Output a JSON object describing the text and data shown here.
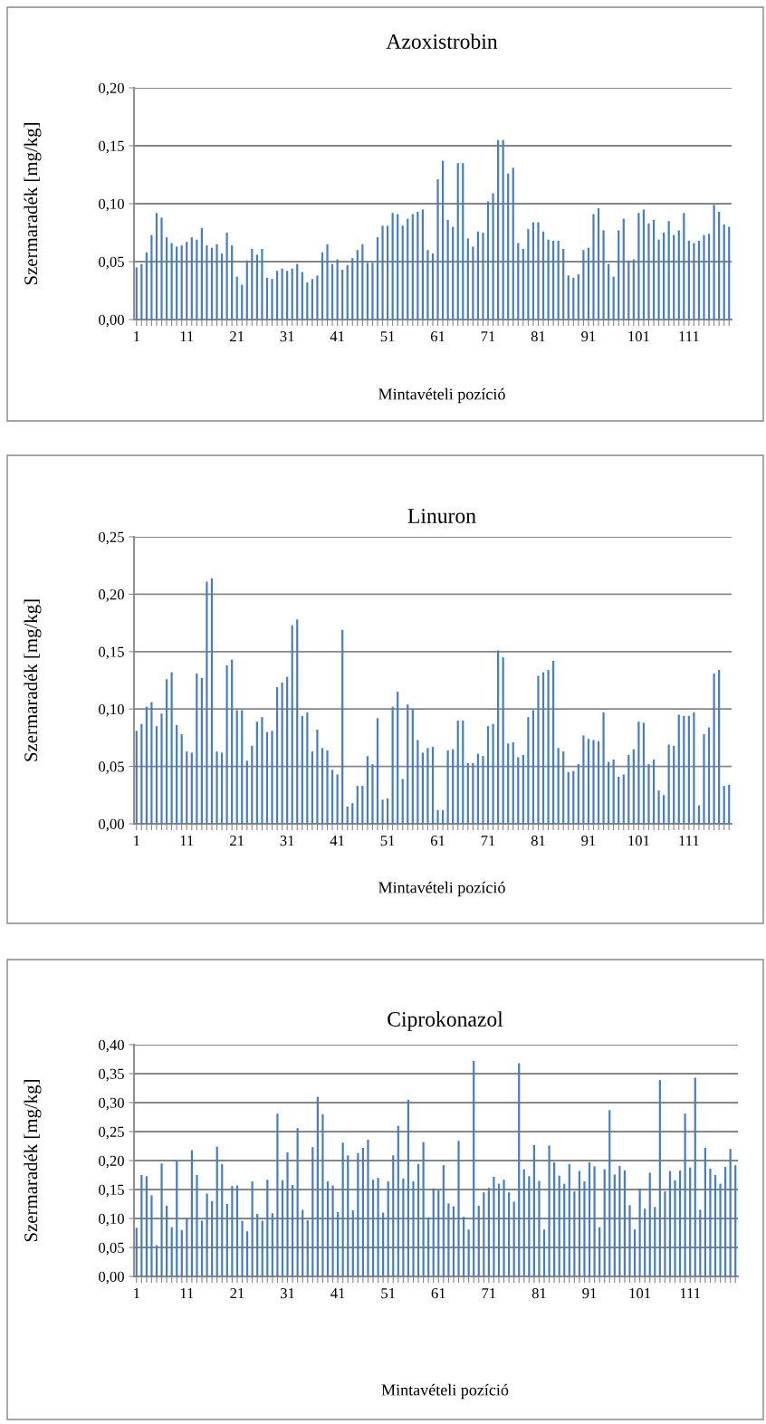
{
  "chart_data": [
    {
      "type": "bar",
      "title": "Azoxistrobin",
      "xlabel": "Mintavételi pozíció",
      "ylabel": "Szermaradék [mg/kg]",
      "color": "#4a7ebb",
      "grid": "y",
      "categories": [
        "1",
        null,
        null,
        null,
        null,
        null,
        null,
        null,
        null,
        null,
        "11",
        null,
        null,
        null,
        null,
        null,
        null,
        null,
        null,
        null,
        "21",
        null,
        null,
        null,
        null,
        null,
        null,
        null,
        null,
        null,
        "31",
        null,
        null,
        null,
        null,
        null,
        null,
        null,
        null,
        null,
        "41",
        null,
        null,
        null,
        null,
        null,
        null,
        null,
        null,
        null,
        "51",
        null,
        null,
        null,
        null,
        null,
        null,
        null,
        null,
        null,
        "61",
        null,
        null,
        null,
        null,
        null,
        null,
        null,
        null,
        null,
        "71",
        null,
        null,
        null,
        null,
        null,
        null,
        null,
        null,
        null,
        "81",
        null,
        null,
        null,
        null,
        null,
        null,
        null,
        null,
        null,
        "91",
        null,
        null,
        null,
        null,
        null,
        null,
        null,
        null,
        null,
        "101",
        null,
        null,
        null,
        null,
        null,
        null,
        null,
        null,
        null,
        "111",
        null,
        null,
        null,
        null,
        null,
        null,
        null,
        null
      ],
      "values": [
        0.045,
        0.048,
        0.058,
        0.073,
        0.092,
        0.088,
        0.071,
        0.066,
        0.063,
        0.064,
        0.067,
        0.071,
        0.069,
        0.079,
        0.064,
        0.062,
        0.065,
        0.057,
        0.075,
        0.064,
        0.037,
        0.03,
        0.051,
        0.061,
        0.056,
        0.061,
        0.036,
        0.035,
        0.042,
        0.044,
        0.042,
        0.044,
        0.048,
        0.041,
        0.032,
        0.035,
        0.038,
        0.058,
        0.065,
        0.048,
        0.052,
        0.043,
        0.047,
        0.053,
        0.06,
        0.065,
        0.049,
        0.049,
        0.071,
        0.081,
        0.081,
        0.092,
        0.091,
        0.081,
        0.087,
        0.091,
        0.093,
        0.095,
        0.06,
        0.057,
        0.121,
        0.137,
        0.086,
        0.08,
        0.135,
        0.135,
        0.07,
        0.063,
        0.076,
        0.075,
        0.102,
        0.109,
        0.155,
        0.155,
        0.126,
        0.131,
        0.066,
        0.061,
        0.078,
        0.084,
        0.084,
        0.076,
        0.069,
        0.068,
        0.068,
        0.061,
        0.038,
        0.036,
        0.039,
        0.06,
        0.062,
        0.091,
        0.096,
        0.077,
        0.048,
        0.037,
        0.077,
        0.087,
        0.051,
        0.052,
        0.092,
        0.095,
        0.083,
        0.086,
        0.069,
        0.075,
        0.085,
        0.073,
        0.077,
        0.092,
        0.068,
        0.066,
        0.068,
        0.073,
        0.074,
        0.099,
        0.093,
        0.082,
        0.08
      ],
      "ylim": [
        0,
        0.2
      ],
      "yticks": [
        {
          "value": 0,
          "label": "0,00"
        },
        {
          "value": 0.05,
          "label": "0,05"
        },
        {
          "value": 0.1,
          "label": "0,10"
        },
        {
          "value": 0.15,
          "label": "0,15"
        },
        {
          "value": 0.2,
          "label": "0,20"
        }
      ]
    },
    {
      "type": "bar",
      "title": "Linuron",
      "xlabel": "Mintavételi pozíció",
      "ylabel": "Szermaradék [mg/kg]",
      "color": "#4a7ebb",
      "grid": "y",
      "categories": [
        "1",
        null,
        null,
        null,
        null,
        null,
        null,
        null,
        null,
        null,
        "11",
        null,
        null,
        null,
        null,
        null,
        null,
        null,
        null,
        null,
        "21",
        null,
        null,
        null,
        null,
        null,
        null,
        null,
        null,
        null,
        "31",
        null,
        null,
        null,
        null,
        null,
        null,
        null,
        null,
        null,
        "41",
        null,
        null,
        null,
        null,
        null,
        null,
        null,
        null,
        null,
        "51",
        null,
        null,
        null,
        null,
        null,
        null,
        null,
        null,
        null,
        "61",
        null,
        null,
        null,
        null,
        null,
        null,
        null,
        null,
        null,
        "71",
        null,
        null,
        null,
        null,
        null,
        null,
        null,
        null,
        null,
        "81",
        null,
        null,
        null,
        null,
        null,
        null,
        null,
        null,
        null,
        "91",
        null,
        null,
        null,
        null,
        null,
        null,
        null,
        null,
        null,
        "101",
        null,
        null,
        null,
        null,
        null,
        null,
        null,
        null,
        null,
        "111",
        null,
        null,
        null,
        null,
        null,
        null,
        null,
        null
      ],
      "values": [
        0.081,
        0.087,
        0.102,
        0.106,
        0.085,
        0.096,
        0.126,
        0.132,
        0.086,
        0.078,
        0.063,
        0.062,
        0.131,
        0.127,
        0.211,
        0.214,
        0.063,
        0.062,
        0.138,
        0.143,
        0.099,
        0.099,
        0.055,
        0.068,
        0.089,
        0.093,
        0.08,
        0.081,
        0.119,
        0.123,
        0.128,
        0.173,
        0.178,
        0.094,
        0.097,
        0.063,
        0.082,
        0.066,
        0.064,
        0.047,
        0.043,
        0.169,
        0.015,
        0.018,
        0.033,
        0.033,
        0.059,
        0.052,
        0.092,
        0.021,
        0.022,
        0.102,
        0.115,
        0.039,
        0.104,
        0.1,
        0.073,
        0.062,
        0.066,
        0.067,
        0.012,
        0.012,
        0.064,
        0.065,
        0.09,
        0.09,
        0.053,
        0.053,
        0.061,
        0.059,
        0.085,
        0.087,
        0.151,
        0.145,
        0.07,
        0.071,
        0.058,
        0.06,
        0.093,
        0.099,
        0.129,
        0.132,
        0.134,
        0.142,
        0.066,
        0.063,
        0.045,
        0.046,
        0.052,
        0.077,
        0.074,
        0.073,
        0.072,
        0.097,
        0.054,
        0.056,
        0.041,
        0.043,
        0.06,
        0.065,
        0.089,
        0.088,
        0.052,
        0.056,
        0.029,
        0.025,
        0.069,
        0.068,
        0.095,
        0.094,
        0.094,
        0.097,
        0.016,
        0.078,
        0.084,
        0.131,
        0.134,
        0.033,
        0.034
      ],
      "ylim": [
        0,
        0.25
      ],
      "yticks": [
        {
          "value": 0,
          "label": "0,00"
        },
        {
          "value": 0.05,
          "label": "0,05"
        },
        {
          "value": 0.1,
          "label": "0,10"
        },
        {
          "value": 0.15,
          "label": "0,15"
        },
        {
          "value": 0.2,
          "label": "0,20"
        },
        {
          "value": 0.25,
          "label": "0,25"
        }
      ]
    },
    {
      "type": "bar",
      "title": "Ciprokonazol",
      "xlabel": "Mintavételi pozíció",
      "ylabel": "Szermaradék [mg/kg]",
      "color": "#4a7ebb",
      "grid": "y",
      "categories": [
        "1",
        null,
        null,
        null,
        null,
        null,
        null,
        null,
        null,
        null,
        "11",
        null,
        null,
        null,
        null,
        null,
        null,
        null,
        null,
        null,
        "21",
        null,
        null,
        null,
        null,
        null,
        null,
        null,
        null,
        null,
        "31",
        null,
        null,
        null,
        null,
        null,
        null,
        null,
        null,
        null,
        "41",
        null,
        null,
        null,
        null,
        null,
        null,
        null,
        null,
        null,
        "51",
        null,
        null,
        null,
        null,
        null,
        null,
        null,
        null,
        null,
        "61",
        null,
        null,
        null,
        null,
        null,
        null,
        null,
        null,
        null,
        "71",
        null,
        null,
        null,
        null,
        null,
        null,
        null,
        null,
        null,
        "81",
        null,
        null,
        null,
        null,
        null,
        null,
        null,
        null,
        null,
        "91",
        null,
        null,
        null,
        null,
        null,
        null,
        null,
        null,
        null,
        "101",
        null,
        null,
        null,
        null,
        null,
        null,
        null,
        null,
        null,
        "111",
        null,
        null,
        null,
        null,
        null,
        null,
        null,
        null,
        null
      ],
      "values": [
        0.084,
        0.175,
        0.173,
        0.14,
        0.054,
        0.195,
        0.122,
        0.085,
        0.199,
        0.08,
        0.1,
        0.218,
        0.175,
        0.096,
        0.143,
        0.13,
        0.224,
        0.194,
        0.125,
        0.156,
        0.157,
        0.096,
        0.078,
        0.164,
        0.108,
        0.096,
        0.167,
        0.109,
        0.281,
        0.166,
        0.214,
        0.158,
        0.256,
        0.115,
        0.097,
        0.223,
        0.31,
        0.28,
        0.164,
        0.157,
        0.111,
        0.231,
        0.209,
        0.114,
        0.213,
        0.222,
        0.236,
        0.167,
        0.17,
        0.11,
        0.164,
        0.209,
        0.26,
        0.169,
        0.305,
        0.164,
        0.194,
        0.232,
        0.102,
        0.152,
        0.149,
        0.192,
        0.126,
        0.121,
        0.234,
        0.103,
        0.081,
        0.372,
        0.122,
        0.145,
        0.153,
        0.172,
        0.16,
        0.167,
        0.145,
        0.129,
        0.368,
        0.185,
        0.173,
        0.227,
        0.165,
        0.081,
        0.226,
        0.197,
        0.174,
        0.16,
        0.194,
        0.147,
        0.182,
        0.164,
        0.197,
        0.19,
        0.085,
        0.185,
        0.287,
        0.176,
        0.191,
        0.183,
        0.123,
        0.081,
        0.152,
        0.117,
        0.179,
        0.12,
        0.339,
        0.147,
        0.182,
        0.166,
        0.183,
        0.281,
        0.188,
        0.343,
        0.115,
        0.222,
        0.186,
        0.175,
        0.16,
        0.189,
        0.22,
        0.192
      ],
      "ylim": [
        0,
        0.4
      ],
      "yticks": [
        {
          "value": 0,
          "label": "0,00"
        },
        {
          "value": 0.05,
          "label": "0,05"
        },
        {
          "value": 0.1,
          "label": "0,10"
        },
        {
          "value": 0.15,
          "label": "0,15"
        },
        {
          "value": 0.2,
          "label": "0,20"
        },
        {
          "value": 0.25,
          "label": "0,25"
        },
        {
          "value": 0.3,
          "label": "0,30"
        },
        {
          "value": 0.35,
          "label": "0,35"
        },
        {
          "value": 0.4,
          "label": "0,40"
        }
      ]
    }
  ]
}
